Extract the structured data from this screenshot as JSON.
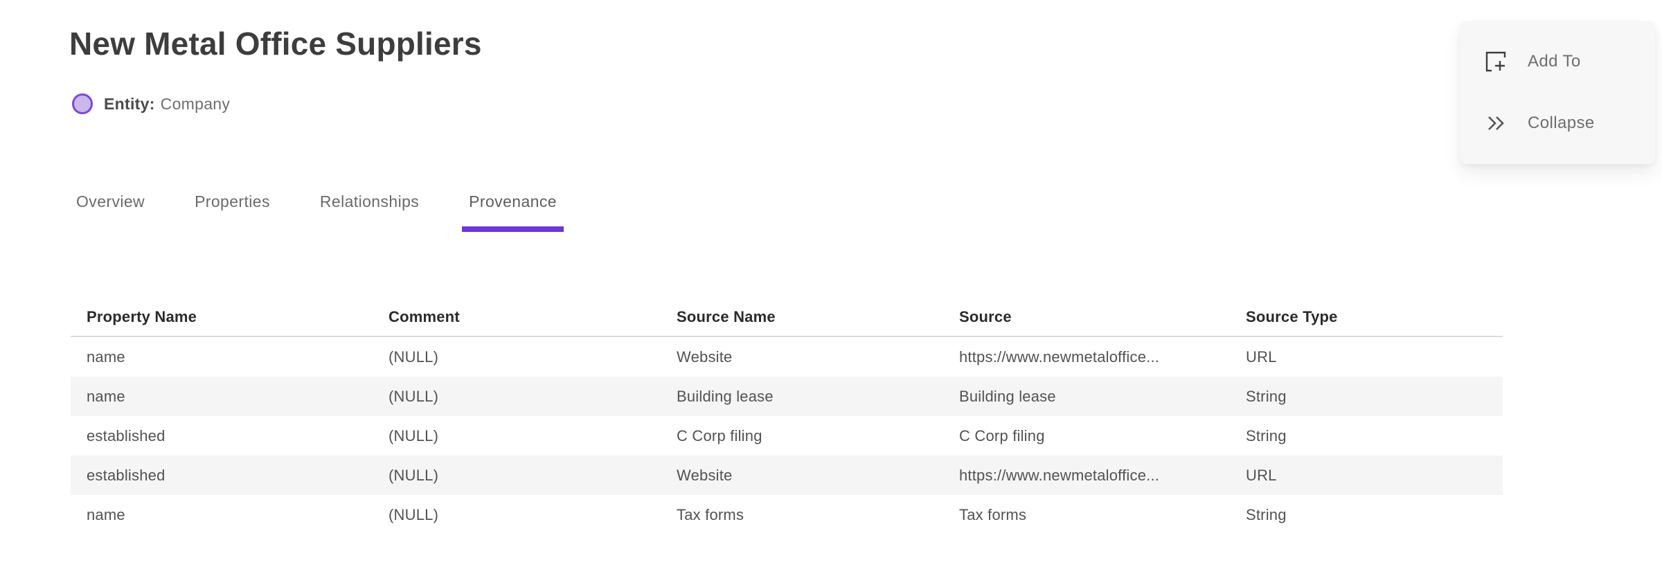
{
  "page": {
    "title": "New Metal Office Suppliers",
    "entity_label": "Entity:",
    "entity_type": "Company"
  },
  "actions": {
    "add_to_label": "Add To",
    "collapse_label": "Collapse"
  },
  "tabs": [
    {
      "label": "Overview",
      "active": false
    },
    {
      "label": "Properties",
      "active": false
    },
    {
      "label": "Relationships",
      "active": false
    },
    {
      "label": "Provenance",
      "active": true
    }
  ],
  "table": {
    "columns": [
      "Property Name",
      "Comment",
      "Source Name",
      "Source",
      "Source Type"
    ],
    "rows": [
      [
        "name",
        "(NULL)",
        "Website",
        "https://www.newmetaloffice...",
        "URL"
      ],
      [
        "name",
        "(NULL)",
        "Building lease",
        "Building lease",
        "String"
      ],
      [
        "established",
        "(NULL)",
        "C Corp filing",
        "C Corp filing",
        "String"
      ],
      [
        "established",
        "(NULL)",
        "Website",
        "https://www.newmetaloffice...",
        "URL"
      ],
      [
        "name",
        "(NULL)",
        "Tax forms",
        "Tax forms",
        "String"
      ]
    ]
  },
  "colors": {
    "accent_purple": "#6e37d0",
    "entity_fill": "#cbb7ec",
    "entity_border": "#7a49d6",
    "row_alt_bg": "#f5f5f5",
    "header_divider": "#dcdcdc",
    "card_bg": "#f7f7f7",
    "text_primary": "#3d3d3d",
    "text_secondary": "#6e6e6e"
  }
}
